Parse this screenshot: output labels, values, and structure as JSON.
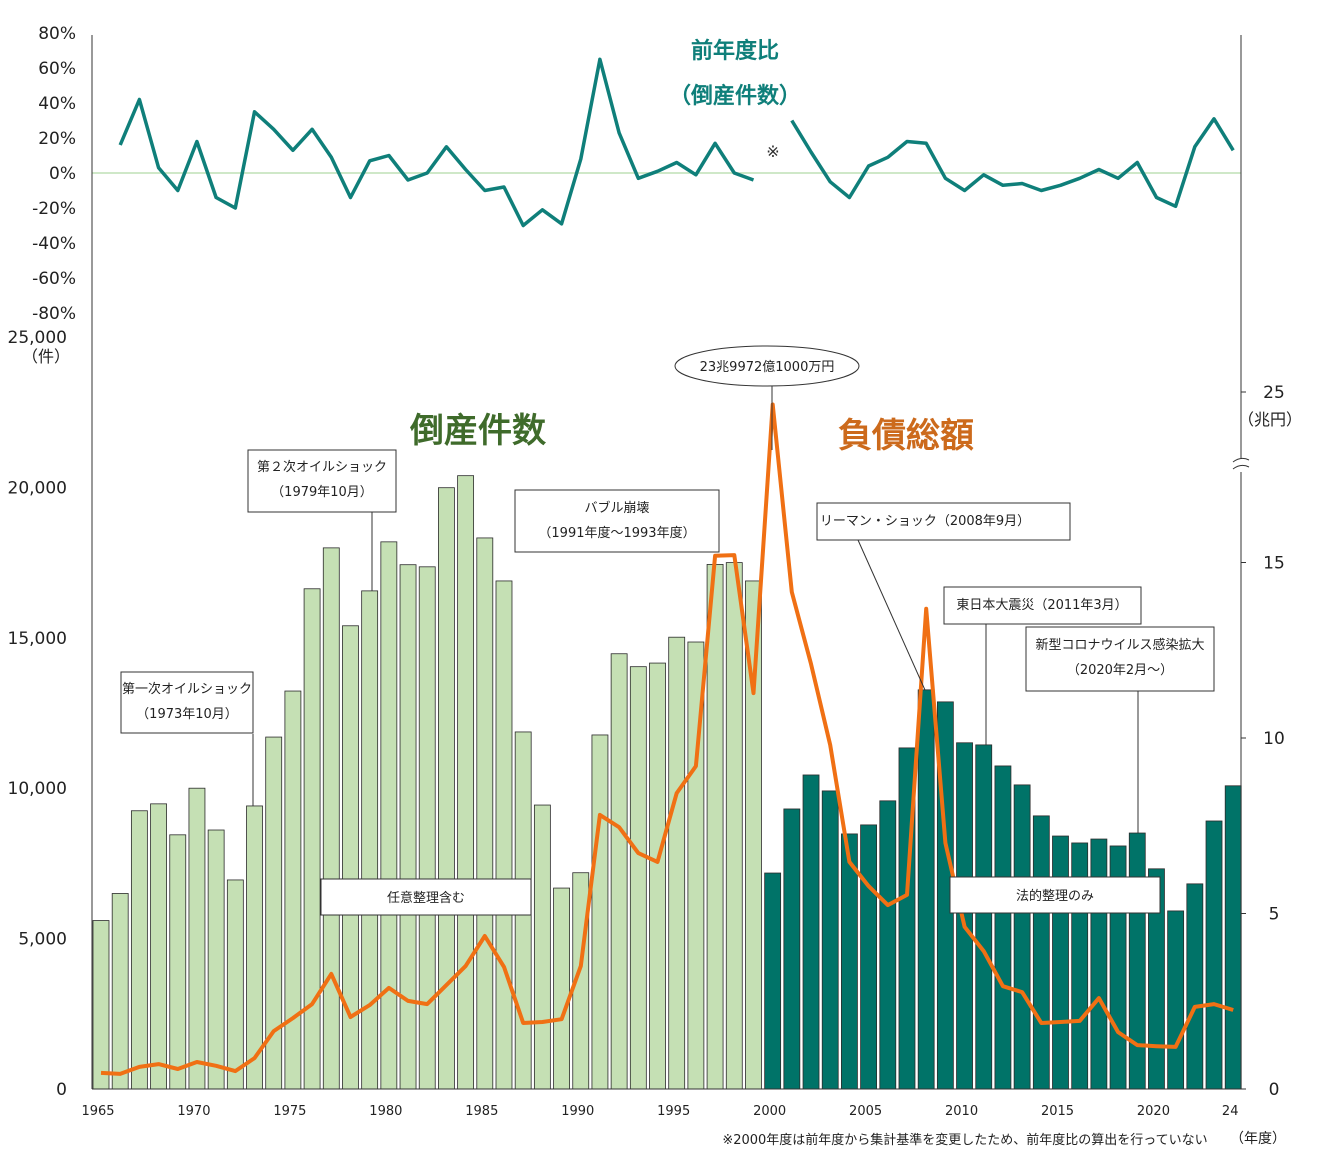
{
  "chart_data": [
    {
      "type": "bar",
      "title": "倒産件数",
      "unit": "（件）",
      "x_unit": "（年度）",
      "x": [
        1965,
        1966,
        1967,
        1968,
        1969,
        1970,
        1971,
        1972,
        1973,
        1974,
        1975,
        1976,
        1977,
        1978,
        1979,
        1980,
        1981,
        1982,
        1983,
        1984,
        1985,
        1986,
        1987,
        1988,
        1989,
        1990,
        1991,
        1992,
        1993,
        1994,
        1995,
        1996,
        1997,
        1998,
        1999,
        2000,
        2001,
        2002,
        2003,
        2004,
        2005,
        2006,
        2007,
        2008,
        2009,
        2010,
        2011,
        2012,
        2013,
        2014,
        2015,
        2016,
        2017,
        2018,
        2019,
        2020,
        2021,
        2022,
        2023,
        2024
      ],
      "values": [
        5600,
        6500,
        9250,
        9480,
        8450,
        10000,
        8610,
        6950,
        9410,
        11700,
        13230,
        16630,
        17990,
        15400,
        16560,
        18190,
        17430,
        17360,
        19990,
        20390,
        18320,
        16890,
        11870,
        9440,
        6680,
        7190,
        11770,
        14470,
        14040,
        14160,
        15020,
        14860,
        17440,
        17500,
        16890,
        7180,
        9310,
        10440,
        9910,
        8480,
        8780,
        9580,
        11340,
        13270,
        12870,
        11510,
        11440,
        10740,
        10110,
        9080,
        8410,
        8180,
        8310,
        8080,
        8510,
        7320,
        5920,
        6820,
        8910,
        10080
      ],
      "series_colors": {
        "1965-1999": "#c5e0b4",
        "2000-2024": "#007368"
      },
      "series_notes": [
        "任意整理含む",
        "法的整理のみ"
      ],
      "ylim": [
        0,
        25000
      ],
      "yticks": [
        "0",
        "5,000",
        "10,000",
        "15,000",
        "20,000",
        "25,000"
      ],
      "xticks": [
        "1965",
        "1970",
        "1975",
        "1980",
        "1985",
        "1990",
        "1995",
        "2000",
        "2005",
        "2010",
        "2015",
        "2020",
        "24"
      ]
    },
    {
      "type": "line",
      "title": "負債総額",
      "unit": "（兆円）",
      "color": "#f07014",
      "x": [
        1965,
        1966,
        1967,
        1968,
        1969,
        1970,
        1971,
        1972,
        1973,
        1974,
        1975,
        1976,
        1977,
        1978,
        1979,
        1980,
        1981,
        1982,
        1983,
        1984,
        1985,
        1986,
        1987,
        1988,
        1989,
        1990,
        1991,
        1992,
        1993,
        1994,
        1995,
        1996,
        1997,
        1998,
        1999,
        2000,
        2001,
        2002,
        2003,
        2004,
        2005,
        2006,
        2007,
        2008,
        2009,
        2010,
        2011,
        2012,
        2013,
        2014,
        2015,
        2016,
        2017,
        2018,
        2019,
        2020,
        2021,
        2022,
        2023,
        2024
      ],
      "values": [
        0.46,
        0.43,
        0.63,
        0.71,
        0.57,
        0.77,
        0.66,
        0.51,
        0.88,
        1.65,
        2.02,
        2.42,
        3.28,
        2.05,
        2.39,
        2.88,
        2.51,
        2.42,
        2.96,
        3.5,
        4.36,
        3.48,
        1.88,
        1.91,
        1.99,
        3.5,
        7.81,
        7.46,
        6.72,
        6.47,
        8.43,
        9.2,
        15.19,
        15.21,
        11.28,
        24.0,
        14.16,
        12.11,
        9.8,
        6.47,
        5.78,
        5.24,
        5.53,
        13.68,
        7.01,
        4.62,
        3.93,
        2.93,
        2.76,
        1.88,
        1.91,
        1.94,
        2.59,
        1.62,
        1.25,
        1.22,
        1.2,
        2.34,
        2.42,
        2.25
      ],
      "ylim": [
        0,
        25
      ],
      "axis_break": true,
      "yticks": [
        "0",
        "5",
        "10",
        "15",
        "25"
      ]
    },
    {
      "type": "line",
      "title": "前年度比",
      "subtitle": "（倒産件数）",
      "color": "#0f7f7a",
      "x": [
        1966,
        1967,
        1968,
        1969,
        1970,
        1971,
        1972,
        1973,
        1974,
        1975,
        1976,
        1977,
        1978,
        1979,
        1980,
        1981,
        1982,
        1983,
        1984,
        1985,
        1986,
        1987,
        1988,
        1989,
        1990,
        1991,
        1992,
        1993,
        1994,
        1995,
        1996,
        1997,
        1998,
        1999,
        2000,
        2001,
        2002,
        2003,
        2004,
        2005,
        2006,
        2007,
        2008,
        2009,
        2010,
        2011,
        2012,
        2013,
        2014,
        2015,
        2016,
        2017,
        2018,
        2019,
        2020,
        2021,
        2022,
        2023,
        2024
      ],
      "values": [
        16,
        42,
        3,
        -10,
        18,
        -14,
        -20,
        35,
        25,
        13,
        25,
        9,
        -14,
        7,
        10,
        -4,
        0,
        15,
        2,
        -10,
        -8,
        -30,
        -21,
        -29,
        8,
        65,
        23,
        -3,
        1,
        6,
        -1,
        17,
        0,
        -4,
        null,
        30,
        12,
        -5,
        -14,
        4,
        9,
        18,
        17,
        -3,
        -10,
        -1,
        -7,
        -6,
        -10,
        -7,
        -3,
        2,
        -3,
        6,
        -14,
        -19,
        15,
        31,
        13
      ],
      "ylim": [
        -80,
        80
      ],
      "yticks": [
        "80%",
        "60%",
        "40%",
        "20%",
        "0%",
        "-20%",
        "-40%",
        "-60%",
        "-80%"
      ],
      "gap_mark": "※"
    }
  ],
  "annotations": {
    "oil1": [
      "第一次オイルショック",
      "（1973年10月）"
    ],
    "oil2": [
      "第２次オイルショック",
      "（1979年10月）"
    ],
    "bubble": [
      "バブル崩壊",
      "（1991年度～1993年度）"
    ],
    "peak": "23兆9972億1000万円",
    "lehman": "リーマン・ショック（2008年9月）",
    "quake": "東日本大震災（2011年3月）",
    "covid": [
      "新型コロナウイルス感染拡大",
      "（2020年2月～）"
    ],
    "voluntary": "任意整理含む",
    "legal": "法的整理のみ"
  },
  "footnote": "※2000年度は前年度から集計基準を変更したため、前年度比の算出を行っていない"
}
